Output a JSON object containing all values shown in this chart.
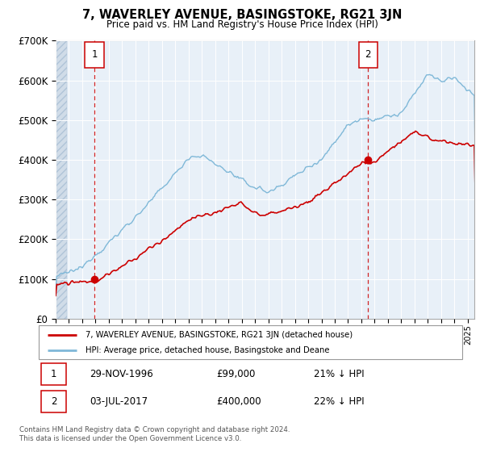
{
  "title": "7, WAVERLEY AVENUE, BASINGSTOKE, RG21 3JN",
  "subtitle": "Price paid vs. HM Land Registry's House Price Index (HPI)",
  "ylim": [
    0,
    700000
  ],
  "xlim_start": 1994.0,
  "xlim_end": 2025.5,
  "yticks": [
    0,
    100000,
    200000,
    300000,
    400000,
    500000,
    600000,
    700000
  ],
  "ytick_labels": [
    "£0",
    "£100K",
    "£200K",
    "£300K",
    "£400K",
    "£500K",
    "£600K",
    "£700K"
  ],
  "hpi_color": "#7fb8d8",
  "price_color": "#cc0000",
  "purchase1_date": 1996.91,
  "purchase1_price": 99000,
  "purchase2_date": 2017.5,
  "purchase2_price": 400000,
  "legend1": "7, WAVERLEY AVENUE, BASINGSTOKE, RG21 3JN (detached house)",
  "legend2": "HPI: Average price, detached house, Basingstoke and Deane",
  "note1_num": "1",
  "note1_date": "29-NOV-1996",
  "note1_price": "£99,000",
  "note1_hpi": "21% ↓ HPI",
  "note2_num": "2",
  "note2_date": "03-JUL-2017",
  "note2_price": "£400,000",
  "note2_hpi": "22% ↓ HPI",
  "footer1": "Contains HM Land Registry data © Crown copyright and database right 2024.",
  "footer2": "This data is licensed under the Open Government Licence v3.0.",
  "plot_bg": "#e8f0f8",
  "hatch_end": 1994.83
}
